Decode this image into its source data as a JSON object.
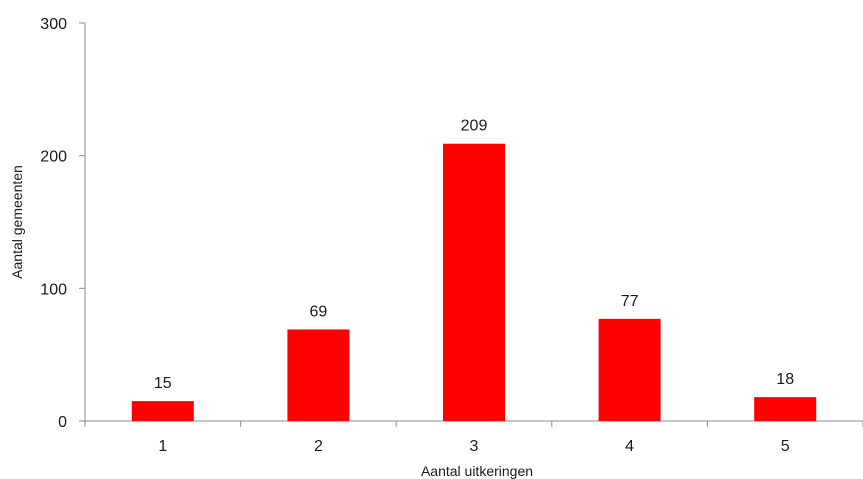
{
  "chart_data": {
    "type": "bar",
    "categories": [
      "1",
      "2",
      "3",
      "4",
      "5"
    ],
    "values": [
      15,
      69,
      209,
      77,
      18
    ],
    "data_labels": [
      "15",
      "69",
      "209",
      "77",
      "18"
    ],
    "xlabel": "Aantal uitkeringen",
    "ylabel": "Aantal gemeenten",
    "ylim": [
      0,
      300
    ],
    "yticks": [
      0,
      100,
      200,
      300
    ],
    "ytick_labels": [
      "0",
      "100",
      "200",
      "300"
    ],
    "grid": false,
    "bar_color": "#ff0000"
  }
}
